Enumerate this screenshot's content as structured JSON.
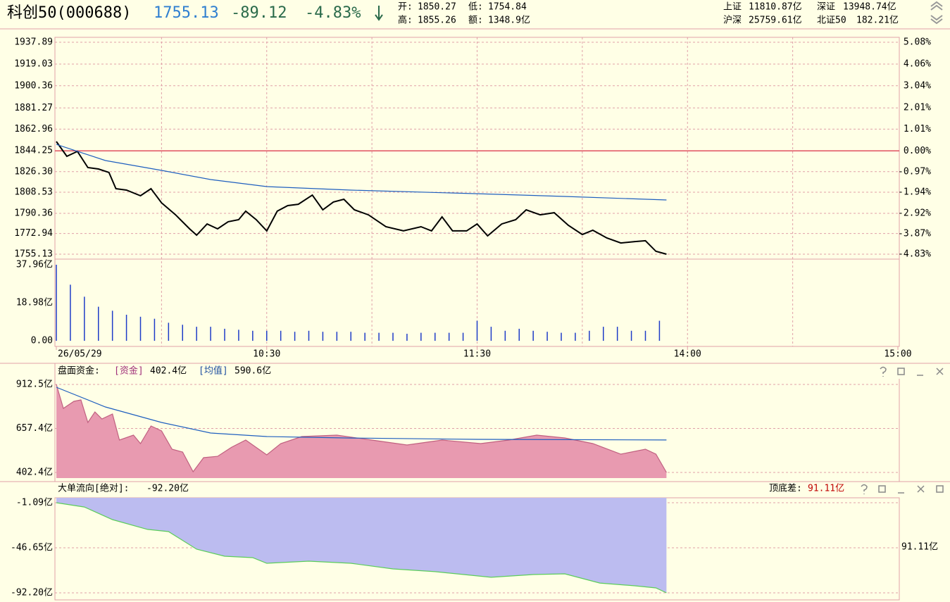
{
  "header": {
    "name": "科创50(000688)",
    "price": "1755.13",
    "change": "-89.12",
    "pct": "-4.83%",
    "quote": [
      {
        "label": "开:",
        "value": "1850.27"
      },
      {
        "label": "低:",
        "value": "1754.84"
      },
      {
        "label": "高:",
        "value": "1855.26"
      },
      {
        "label": "额:",
        "value": "1348.9亿"
      }
    ],
    "indices": [
      {
        "name": "上证",
        "value": "11810.87亿"
      },
      {
        "name": "深证",
        "value": "13948.74亿"
      },
      {
        "name": "沪深",
        "value": "25759.61亿"
      },
      {
        "name": "北证50",
        "value": "182.21亿"
      }
    ]
  },
  "chart_data": [
    {
      "type": "line",
      "xlim": [
        0,
        240
      ],
      "xgrid": [
        30,
        60,
        90,
        120,
        150,
        180,
        210
      ],
      "ylim": [
        1755.13,
        1937.89
      ],
      "baseline": 1844.25,
      "baseline_color": "#e05060",
      "yticks": [
        1937.89,
        1919.03,
        1900.36,
        1881.27,
        1862.96,
        1844.25,
        {
          "value": 1826.3,
          "label": "1826.30"
        },
        1808.53,
        1790.36,
        1772.94,
        1755.13
      ],
      "y2lim": [
        -4.83,
        5.08
      ],
      "y2ticks": [
        {
          "value": 5.08,
          "label": "5.08%"
        },
        {
          "value": 4.06,
          "label": "4.06%"
        },
        {
          "value": 3.04,
          "label": "3.04%"
        },
        {
          "value": 2.01,
          "label": "2.01%"
        },
        {
          "value": 1.01,
          "label": "1.01%"
        },
        {
          "value": 0,
          "label": "0.00%"
        },
        {
          "value": -0.97,
          "label": "-0.97%"
        },
        {
          "value": -1.94,
          "label": "-1.94%"
        },
        {
          "value": -2.92,
          "label": "-2.92%"
        },
        {
          "value": -3.87,
          "label": "-3.87%"
        },
        {
          "value": -4.83,
          "label": "-4.83%"
        }
      ],
      "series": [
        {
          "type": "line",
          "color": "#000000",
          "x": [
            0,
            3,
            6,
            9,
            12,
            15,
            17,
            20,
            24,
            27,
            30,
            34,
            38,
            40,
            43,
            46,
            49,
            52,
            54,
            57,
            60,
            63,
            66,
            69,
            73,
            76,
            79,
            82,
            85,
            89,
            94,
            99,
            104,
            107,
            110,
            113,
            117,
            120,
            123,
            127,
            131,
            134,
            138,
            142,
            146,
            150,
            153,
            157,
            161,
            165,
            168,
            171,
            174
          ],
          "values": [
            1852.3,
            1839.5,
            1843.8,
            1829.8,
            1828.6,
            1825.6,
            1811.6,
            1810.4,
            1805.5,
            1811.6,
            1799.4,
            1789.1,
            1777.0,
            1771.5,
            1781.2,
            1777.0,
            1783.1,
            1784.9,
            1792.2,
            1784.9,
            1775.2,
            1792.2,
            1797.0,
            1798.2,
            1806.1,
            1793.4,
            1800.1,
            1802.5,
            1793.4,
            1789.1,
            1778.8,
            1775.2,
            1778.8,
            1775.2,
            1787.3,
            1775.2,
            1775.2,
            1781.2,
            1770.9,
            1781.2,
            1784.9,
            1793.4,
            1789.1,
            1790.9,
            1780.0,
            1772.1,
            1775.8,
            1769.1,
            1764.8,
            1766.0,
            1766.7,
            1757.6,
            1755.13
          ]
        },
        {
          "type": "line",
          "color": "#1f5fbf",
          "x": [
            0,
            14,
            30,
            44,
            60,
            84,
            120,
            145,
            174
          ],
          "values": [
            1849.8,
            1835.9,
            1827.4,
            1819.5,
            1813.4,
            1810.4,
            1807.3,
            1804.9,
            1801.9
          ]
        }
      ]
    },
    {
      "type": "bar",
      "xlim": [
        0,
        240
      ],
      "color": "#1e3cc8",
      "ylim": [
        0,
        37.96
      ],
      "yticks": [
        {
          "value": 0,
          "label": "0.00"
        },
        {
          "value": 18.98,
          "label": "18.98亿"
        },
        {
          "value": 37.96,
          "label": "37.96亿"
        }
      ],
      "xticks": [
        {
          "value": 0,
          "label": "26/05/29"
        },
        {
          "value": 60,
          "label": "10:30"
        },
        {
          "value": 120,
          "label": "11:30"
        },
        {
          "value": 180,
          "label": "14:00"
        },
        {
          "value": 240,
          "label": "15:00"
        }
      ],
      "x": [
        0,
        4,
        8,
        12,
        16,
        20,
        24,
        28,
        32,
        36,
        40,
        44,
        48,
        52,
        56,
        60,
        64,
        68,
        72,
        76,
        80,
        84,
        88,
        92,
        96,
        100,
        104,
        108,
        112,
        116,
        120,
        124,
        128,
        132,
        136,
        140,
        144,
        148,
        152,
        156,
        160,
        164,
        168,
        172
      ],
      "values": [
        37.96,
        28,
        22,
        17,
        15,
        13,
        12,
        11,
        9,
        8,
        7,
        7,
        6,
        5.5,
        5,
        5,
        5,
        4.5,
        5,
        4.5,
        4.5,
        4.5,
        4,
        4,
        4,
        3.5,
        4,
        4,
        4,
        4,
        10,
        7,
        5,
        6,
        5,
        4.5,
        4,
        4,
        5,
        7,
        7,
        5,
        5,
        10
      ]
    },
    {
      "type": "area",
      "title": "盘面资金:",
      "xlim": [
        0,
        240
      ],
      "ylim": [
        402.4,
        912.5
      ],
      "yticks": [
        {
          "value": 402.4,
          "label": "402.4亿"
        },
        {
          "value": 657.4,
          "label": "657.4亿"
        },
        {
          "value": 912.5,
          "label": "912.5亿"
        }
      ],
      "series": [
        {
          "name": "[资金]",
          "value_label": "402.4亿",
          "type": "area",
          "fill_from": "bottom",
          "color": "#e89ab0",
          "name_color": "#a0307a",
          "x": [
            0,
            2,
            5,
            7,
            9,
            11,
            13,
            16,
            18,
            22,
            24,
            27,
            30,
            33,
            36,
            39,
            42,
            46,
            50,
            54,
            60,
            64,
            70,
            80,
            90,
            100,
            110,
            121,
            129,
            137,
            145,
            153,
            161,
            168,
            171,
            174
          ],
          "values": [
            912.5,
            773.7,
            814.5,
            822.6,
            692,
            753,
            712.5,
            741,
            590,
            618.6,
            569.7,
            671.7,
            643,
            537,
            520.7,
            406.5,
            488,
            496,
            549,
            590,
            504.4,
            569.7,
            610.5,
            618.6,
            590,
            561.5,
            590,
            569.7,
            590,
            618.6,
            602.3,
            569.7,
            508.5,
            537,
            508.5,
            402.4
          ]
        },
        {
          "name": "[均值]",
          "value_label": "590.6亿",
          "type": "line",
          "color": "#1f5fbf",
          "name_color": "#2050a0",
          "x": [
            0,
            14,
            30,
            44,
            60,
            84,
            120,
            174
          ],
          "values": [
            896,
            782,
            692,
            631,
            610.5,
            602,
            594,
            590.6
          ]
        }
      ]
    },
    {
      "type": "area",
      "title": "大单流向[绝对]:",
      "value_label": "-92.20亿",
      "annotation": "顶底差:",
      "spread": "91.11亿",
      "xlim": [
        0,
        240
      ],
      "ylim": [
        -92.2,
        -1.09
      ],
      "yticks": [
        {
          "value": -1.09,
          "label": "-1.09亿"
        },
        {
          "value": -46.65,
          "label": "-46.65亿"
        },
        {
          "value": -92.2,
          "label": "-92.20亿"
        }
      ],
      "series": [
        {
          "type": "area",
          "fill_from": "top",
          "color": "#bcbcf0",
          "line_color": "#5ccc5c",
          "x": [
            0,
            8,
            16,
            26,
            32,
            40,
            48,
            56,
            60,
            72,
            84,
            96,
            108,
            124,
            136,
            145,
            155,
            165,
            171,
            174
          ],
          "values": [
            -1.09,
            -5.4,
            -18.2,
            -28.1,
            -30.3,
            -48.1,
            -55.2,
            -56.6,
            -62.3,
            -60.2,
            -62.3,
            -68.0,
            -70.8,
            -76.5,
            -73.7,
            -73.0,
            -82.3,
            -85.1,
            -87.2,
            -92.2
          ]
        }
      ]
    }
  ]
}
